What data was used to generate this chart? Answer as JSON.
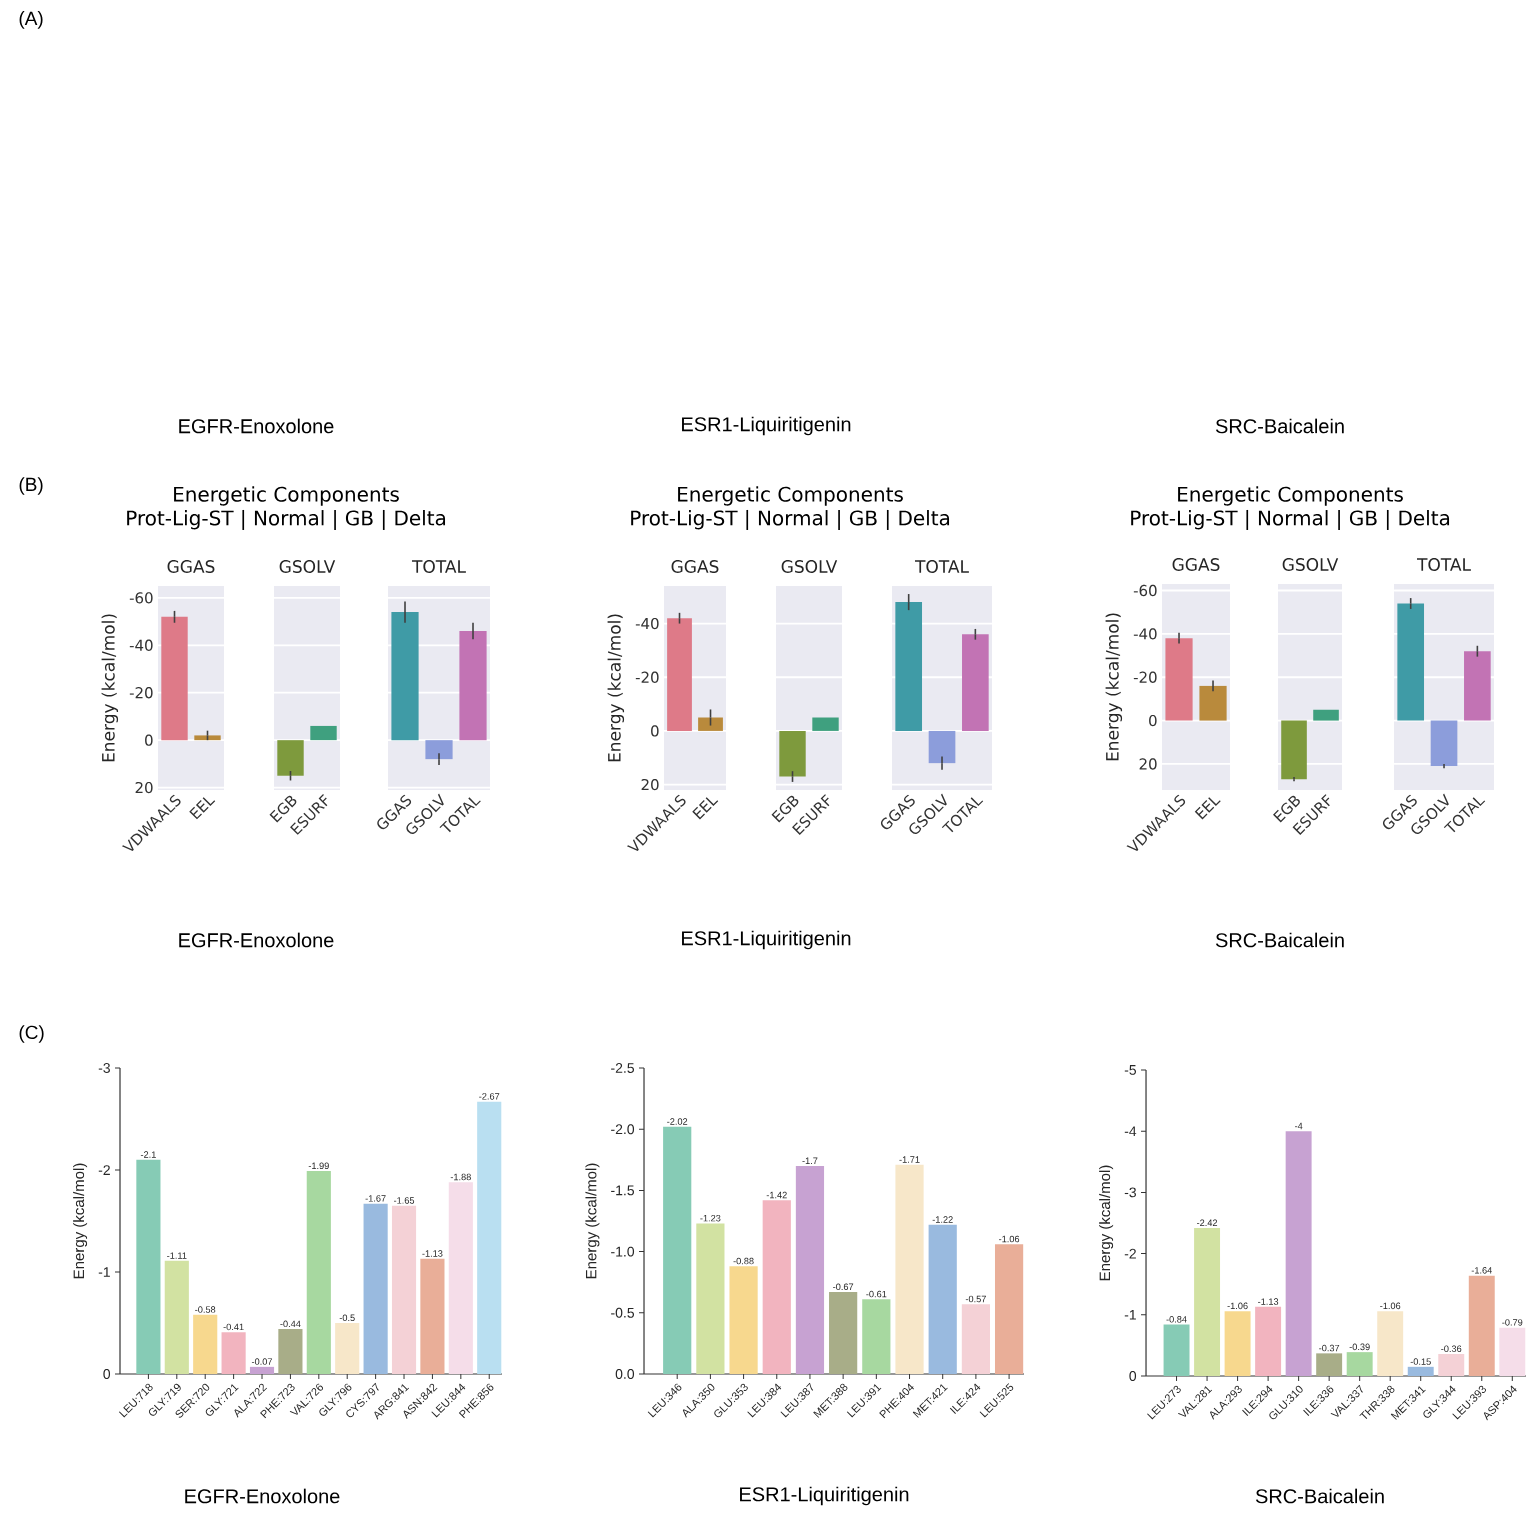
{
  "chart_data": [
    {
      "type": "other",
      "title": "EGFR-Enoxolone",
      "annotations": [
        "(A)"
      ]
    },
    {
      "type": "other",
      "title": "ESR1-Liquiritigenin"
    },
    {
      "type": "other",
      "title": "SRC-Baicalein"
    },
    {
      "type": "bar",
      "title": "GGAS",
      "ylabel": "Energy (kcal/mol)",
      "categories": [
        "VDWAALS",
        "EEL"
      ],
      "values": [
        -52,
        -2
      ],
      "errors": [
        2.5,
        2
      ],
      "colors": [
        "#de7a88",
        "#b98a3c"
      ],
      "ylim": [
        21,
        -65
      ],
      "yticks": [
        -60,
        -40,
        -20,
        0,
        20
      ],
      "grid": "y",
      "annotations": [
        "(B)",
        "Energetic Components",
        "Prot-Lig-ST | Normal | GB | Delta"
      ]
    },
    {
      "type": "bar",
      "title": "GSOLV",
      "categories": [
        "EGB",
        "ESURF"
      ],
      "values": [
        15,
        -6
      ],
      "errors": [
        2,
        null
      ],
      "colors": [
        "#7e9a3d",
        "#3fa07f"
      ],
      "ylim": [
        21,
        -65
      ],
      "yticks": [
        -60,
        -40,
        -20,
        0,
        20
      ],
      "grid": "y",
      "tick_labels": "x",
      "annotations": [
        "EGFR-Enoxolone"
      ]
    },
    {
      "type": "bar",
      "title": "TOTAL",
      "categories": [
        "GGAS",
        "GSOLV",
        "TOTAL"
      ],
      "values": [
        -54,
        8,
        -46
      ],
      "errors": [
        4.5,
        2.5,
        3.5
      ],
      "colors": [
        "#3f9ba6",
        "#8c9ddb",
        "#c273b4"
      ],
      "ylim": [
        21,
        -65
      ],
      "yticks": [
        -60,
        -40,
        -20,
        0,
        20
      ],
      "grid": "y",
      "tick_labels": "x"
    },
    {
      "type": "bar",
      "title": "GGAS",
      "ylabel": "Energy (kcal/mol)",
      "categories": [
        "VDWAALS",
        "EEL"
      ],
      "values": [
        -42,
        -5
      ],
      "errors": [
        2,
        3
      ],
      "colors": [
        "#de7a88",
        "#b98a3c"
      ],
      "ylim": [
        22,
        -54
      ],
      "yticks": [
        -40,
        -20,
        0,
        20
      ],
      "grid": "y",
      "annotations": [
        "Energetic Components",
        "Prot-Lig-ST | Normal | GB | Delta"
      ]
    },
    {
      "type": "bar",
      "title": "GSOLV",
      "categories": [
        "EGB",
        "ESURF"
      ],
      "values": [
        17,
        -5
      ],
      "errors": [
        2,
        null
      ],
      "colors": [
        "#7e9a3d",
        "#3fa07f"
      ],
      "ylim": [
        22,
        -54
      ],
      "yticks": [
        -40,
        -20,
        0,
        20
      ],
      "grid": "y",
      "tick_labels": "x",
      "annotations": [
        "ESR1-Liquiritigenin"
      ]
    },
    {
      "type": "bar",
      "title": "TOTAL",
      "categories": [
        "GGAS",
        "GSOLV",
        "TOTAL"
      ],
      "values": [
        -48,
        12,
        -36
      ],
      "errors": [
        3,
        2.5,
        2
      ],
      "colors": [
        "#3f9ba6",
        "#8c9ddb",
        "#c273b4"
      ],
      "ylim": [
        22,
        -54
      ],
      "yticks": [
        -40,
        -20,
        0,
        20
      ],
      "grid": "y",
      "tick_labels": "x"
    },
    {
      "type": "bar",
      "title": "GGAS",
      "ylabel": "Energy (kcal/mol)",
      "categories": [
        "VDWAALS",
        "EEL"
      ],
      "values": [
        -38,
        -16
      ],
      "errors": [
        2.5,
        2.5
      ],
      "colors": [
        "#de7a88",
        "#b98a3c"
      ],
      "ylim": [
        32,
        -63
      ],
      "yticks": [
        -60,
        -40,
        -20,
        0,
        20
      ],
      "grid": "y",
      "annotations": [
        "Energetic Components",
        "Prot-Lig-ST | Normal | GB | Delta"
      ]
    },
    {
      "type": "bar",
      "title": "GSOLV",
      "categories": [
        "EGB",
        "ESURF"
      ],
      "values": [
        27,
        -5
      ],
      "errors": [
        1,
        null
      ],
      "colors": [
        "#7e9a3d",
        "#3fa07f"
      ],
      "ylim": [
        32,
        -63
      ],
      "yticks": [
        -60,
        -40,
        -20,
        0,
        20
      ],
      "grid": "y",
      "tick_labels": "x",
      "annotations": [
        "SRC-Baicalein"
      ]
    },
    {
      "type": "bar",
      "title": "TOTAL",
      "categories": [
        "GGAS",
        "GSOLV",
        "TOTAL"
      ],
      "values": [
        -54,
        21,
        -32
      ],
      "errors": [
        2.5,
        1,
        2.5
      ],
      "colors": [
        "#3f9ba6",
        "#8c9ddb",
        "#c273b4"
      ],
      "ylim": [
        32,
        -63
      ],
      "yticks": [
        -60,
        -40,
        -20,
        0,
        20
      ],
      "grid": "y",
      "tick_labels": "x"
    },
    {
      "type": "bar",
      "title": "EGFR-Enoxolone",
      "ylabel": "Energy (kcal/mol)",
      "categories": [
        "LEU:718",
        "GLY:719",
        "SER:720",
        "GLY:721",
        "ALA:722",
        "PHE:723",
        "VAL:726",
        "GLY:796",
        "CYS:797",
        "ARG:841",
        "ASN:842",
        "LEU:844",
        "PHE:856"
      ],
      "values": [
        -2.1,
        -1.11,
        -0.58,
        -0.41,
        -0.07,
        -0.44,
        -1.99,
        -0.5,
        -1.67,
        -1.65,
        -1.13,
        -1.88,
        -2.67
      ],
      "colors": [
        "#86cbb5",
        "#d2e2a2",
        "#f7d88e",
        "#f2b4bf",
        "#c7a2d2",
        "#a8ad88",
        "#a7d8a0",
        "#f7e7c9",
        "#99badf",
        "#f4d1d6",
        "#e9ae98",
        "#f5dde9",
        "#b9dff1"
      ],
      "ylim": [
        0,
        -3
      ],
      "yticks": [
        0,
        -1,
        -2,
        -3
      ],
      "data_labels": true,
      "annotations": [
        "(C)"
      ]
    },
    {
      "type": "bar",
      "title": "ESR1-Liquiritigenin",
      "ylabel": "Energy (kcal/mol)",
      "categories": [
        "LEU:346",
        "ALA:350",
        "GLU:353",
        "LEU:384",
        "LEU:387",
        "MET:388",
        "LEU:391",
        "PHE:404",
        "MET:421",
        "ILE:424",
        "LEU:525"
      ],
      "values": [
        -2.02,
        -1.23,
        -0.88,
        -1.42,
        -1.7,
        -0.67,
        -0.61,
        -1.71,
        -1.22,
        -0.57,
        -1.06
      ],
      "colors": [
        "#86cbb5",
        "#d2e2a2",
        "#f7d88e",
        "#f2b4bf",
        "#c7a2d2",
        "#a8ad88",
        "#a7d8a0",
        "#f7e7c9",
        "#99badf",
        "#f4d1d6",
        "#e9ae98"
      ],
      "ylim": [
        0,
        -2.5
      ],
      "yticks": [
        {
          "value": 0,
          "label": "0.0"
        },
        -0.5,
        {
          "value": -1,
          "label": "-1.0"
        },
        -1.5,
        {
          "value": -2,
          "label": "-2.0"
        },
        -2.5
      ],
      "data_labels": true
    },
    {
      "type": "bar",
      "title": "SRC-Baicalein",
      "ylabel": "Energy (kcal/mol)",
      "categories": [
        "LEU:273",
        "VAL:281",
        "ALA:293",
        "ILE:294",
        "GLU:310",
        "ILE:336",
        "VAL:337",
        "THR:338",
        "MET:341",
        "GLY:344",
        "LEU:393",
        "ASP:404"
      ],
      "values": [
        -0.84,
        -2.42,
        -1.06,
        -1.13,
        -4,
        -0.37,
        -0.39,
        -1.06,
        -0.15,
        -0.36,
        -1.64,
        -0.79
      ],
      "colors": [
        "#86cbb5",
        "#d2e2a2",
        "#f7d88e",
        "#f2b4bf",
        "#c7a2d2",
        "#a8ad88",
        "#a7d8a0",
        "#f7e7c9",
        "#99badf",
        "#f4d1d6",
        "#e9ae98",
        "#f5dde9"
      ],
      "ylim": [
        0,
        -5
      ],
      "yticks": [
        0,
        -1,
        -2,
        -3,
        -4,
        -5
      ],
      "data_labels": true
    }
  ]
}
